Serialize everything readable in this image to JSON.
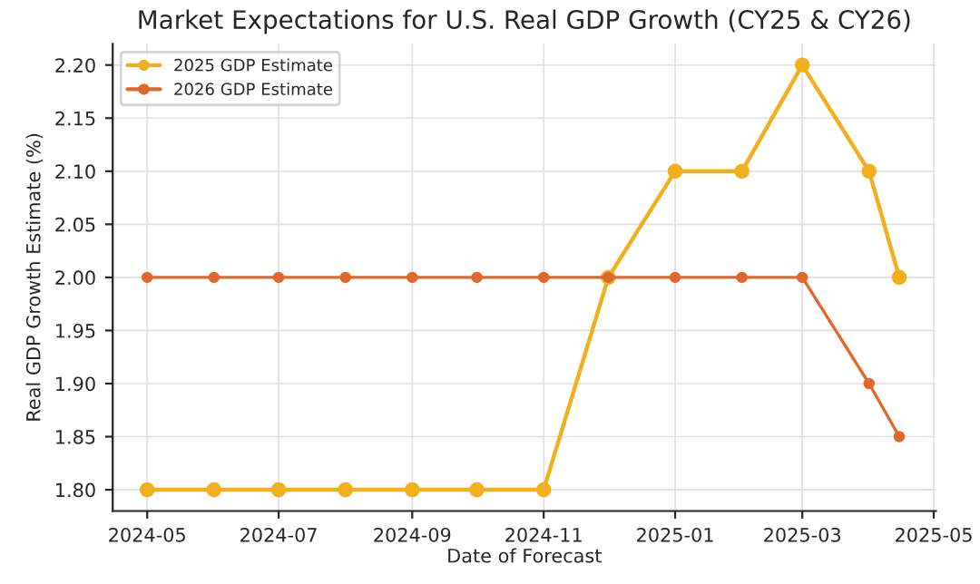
{
  "chart_data": {
    "type": "line",
    "title": "Market Expectations for U.S. Real GDP Growth (CY25 & CY26)",
    "xlabel": "Date of Forecast",
    "ylabel": "Real GDP Growth Estimate (%)",
    "x": [
      "2024-05-01",
      "2024-06-01",
      "2024-07-01",
      "2024-08-01",
      "2024-09-01",
      "2024-10-01",
      "2024-11-01",
      "2024-12-01",
      "2025-01-01",
      "2025-02-01",
      "2025-03-01",
      "2025-04-01",
      "2025-04-15"
    ],
    "series": [
      {
        "name": "2025 GDP Estimate",
        "color": "#f2b01e",
        "values": [
          1.8,
          1.8,
          1.8,
          1.8,
          1.8,
          1.8,
          1.8,
          2.0,
          2.1,
          2.1,
          2.2,
          2.1,
          2.0
        ]
      },
      {
        "name": "2026 GDP Estimate",
        "color": "#e0682c",
        "values": [
          2.0,
          2.0,
          2.0,
          2.0,
          2.0,
          2.0,
          2.0,
          2.0,
          2.0,
          2.0,
          2.0,
          1.9,
          1.85
        ]
      }
    ],
    "xlim": [
      "2024-04-15",
      "2025-05-02"
    ],
    "xticks": [
      "2024-05",
      "2024-07",
      "2024-09",
      "2024-11",
      "2025-01",
      "2025-03",
      "2025-05"
    ],
    "ylim": [
      1.78,
      2.22
    ],
    "yticks": [
      {
        "value": 1.8,
        "label": "1.80"
      },
      {
        "value": 1.85,
        "label": "1.85"
      },
      {
        "value": 1.9,
        "label": "1.90"
      },
      {
        "value": 1.95,
        "label": "1.95"
      },
      {
        "value": 2.0,
        "label": "2.00"
      },
      {
        "value": 2.05,
        "label": "2.05"
      },
      {
        "value": 2.1,
        "label": "2.10"
      },
      {
        "value": 2.15,
        "label": "2.15"
      },
      {
        "value": 2.2,
        "label": "2.20"
      }
    ],
    "grid": true,
    "legend": "top left",
    "marker": "circle",
    "line_style": "solid"
  }
}
